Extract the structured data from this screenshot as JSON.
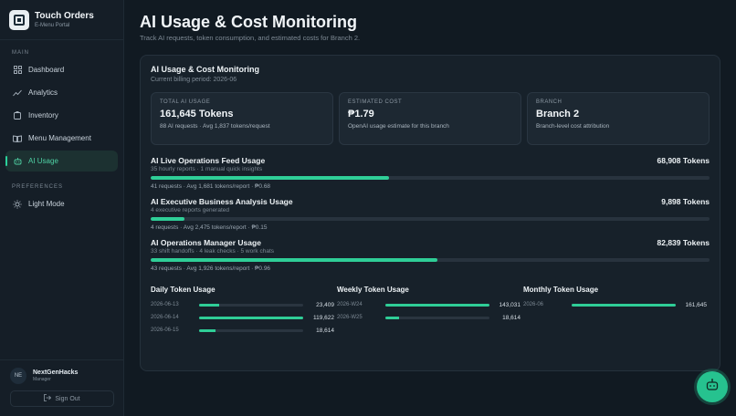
{
  "brand": {
    "title": "Touch Orders",
    "subtitle": "E-Menu Portal"
  },
  "sidebar": {
    "main_label": "MAIN",
    "items": [
      {
        "label": "Dashboard",
        "icon": "grid-icon"
      },
      {
        "label": "Analytics",
        "icon": "trend-icon"
      },
      {
        "label": "Inventory",
        "icon": "box-icon"
      },
      {
        "label": "Menu Management",
        "icon": "book-icon"
      },
      {
        "label": "AI Usage",
        "icon": "robot-icon",
        "active": true
      }
    ],
    "prefs_label": "PREFERENCES",
    "prefs_items": [
      {
        "label": "Light Mode",
        "icon": "sun-icon"
      }
    ]
  },
  "user": {
    "initials": "NE",
    "name": "NextGenHacks",
    "role": "Manager",
    "signout": "Sign Out"
  },
  "header": {
    "title": "AI Usage & Cost Monitoring",
    "subtitle": "Track AI requests, token consumption, and estimated costs for Branch 2."
  },
  "panel": {
    "title": "AI Usage & Cost Monitoring",
    "subtitle": "Current billing period: 2026-06",
    "cards": [
      {
        "label": "TOTAL AI USAGE",
        "value": "161,645 Tokens",
        "note": "88 AI requests · Avg 1,837 tokens/request"
      },
      {
        "label": "ESTIMATED COST",
        "value": "₱1.79",
        "note": "OpenAI usage estimate for this branch"
      },
      {
        "label": "BRANCH",
        "value": "Branch 2",
        "note": "Branch-level cost attribution"
      }
    ],
    "usages": [
      {
        "name": "AI Live Operations Feed Usage",
        "tokens": "68,908 Tokens",
        "sub": "35 hourly reports · 1 manual quick insights",
        "fill": 42.6,
        "meta": "41 requests · Avg 1,681 tokens/report · ₱0.68"
      },
      {
        "name": "AI Executive Business Analysis Usage",
        "tokens": "9,898 Tokens",
        "sub": "4 executive reports generated",
        "fill": 6.1,
        "meta": "4 requests · Avg 2,475 tokens/report · ₱0.15"
      },
      {
        "name": "AI Operations Manager Usage",
        "tokens": "82,839 Tokens",
        "sub": "33 shift handoffs · 4 leak checks · 5 work chats",
        "fill": 51.3,
        "meta": "43 requests · Avg 1,926 tokens/report · ₱0.96"
      }
    ],
    "trends": [
      {
        "title": "Daily Token Usage",
        "rows": [
          {
            "label": "2026-06-13",
            "value": "23,409",
            "fill": 19.6
          },
          {
            "label": "2026-06-14",
            "value": "119,622",
            "fill": 100
          },
          {
            "label": "2026-06-15",
            "value": "18,614",
            "fill": 15.6
          }
        ]
      },
      {
        "title": "Weekly Token Usage",
        "rows": [
          {
            "label": "2026-W24",
            "value": "143,031",
            "fill": 100
          },
          {
            "label": "2026-W25",
            "value": "18,614",
            "fill": 13
          }
        ]
      },
      {
        "title": "Monthly Token Usage",
        "rows": [
          {
            "label": "2026-06",
            "value": "161,645",
            "fill": 100
          }
        ]
      }
    ]
  },
  "fab": {
    "icon": "robot-icon"
  },
  "colors": {
    "accent": "#2fce97",
    "bg": "#111a22",
    "panel": "#17212a"
  }
}
